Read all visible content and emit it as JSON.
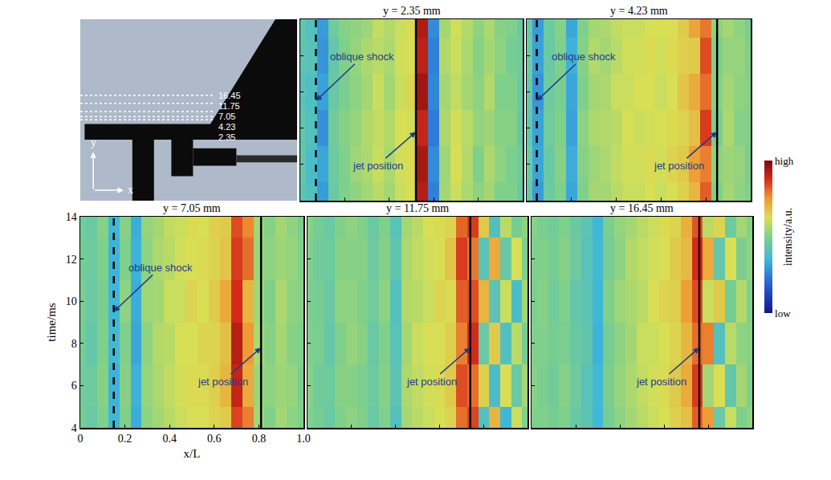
{
  "chart_data": {
    "type": "heatmap",
    "xlabel": "x/L",
    "ylabel": "time/ms",
    "xlim": [
      0,
      1
    ],
    "ylim": [
      4,
      14
    ],
    "xticks": [
      0,
      0.2,
      0.4,
      0.6,
      0.8,
      {
        "value": 1,
        "label": "1.0"
      }
    ],
    "yticks": [
      4,
      6,
      8,
      10,
      12,
      14
    ],
    "grid": false,
    "x": [
      0,
      0.05,
      0.1,
      0.15,
      0.2,
      0.25,
      0.3,
      0.35,
      0.4,
      0.45,
      0.5,
      0.55,
      0.6,
      0.65,
      0.7,
      0.75,
      0.8,
      0.85,
      0.9,
      0.95,
      1
    ],
    "time": [
      4,
      6,
      8,
      10,
      12,
      14
    ],
    "colorbar": {
      "range": [
        0,
        1
      ],
      "ticks": [
        {
          "value": 0,
          "label": "low"
        },
        {
          "value": 1,
          "label": "high"
        }
      ],
      "title": "intensity/a.u."
    },
    "photo": {
      "xlim": [
        0,
        1
      ],
      "ylim": [
        -44,
        60
      ],
      "probe_y": [
        16.45,
        11.75,
        7.05,
        4.23,
        2.35
      ],
      "axis_labels": {
        "x": "x",
        "y": "y"
      }
    },
    "panels": [
      {
        "title": "y = 2.35 mm",
        "tick_labels": false,
        "oblique_shock": {
          "label": "oblique shock",
          "x": 0.07
        },
        "jet": {
          "label": "jet position",
          "x": 0.52
        },
        "z": [
          [
            0.42,
            0.4,
            0.3,
            0.45,
            0.5,
            0.52,
            0.55,
            0.58,
            0.55,
            0.6,
            0.62,
            0.92,
            0.25,
            0.55,
            0.6,
            0.56,
            0.52,
            0.55,
            0.5,
            0.5,
            0.45
          ],
          [
            0.44,
            0.38,
            0.32,
            0.46,
            0.5,
            0.54,
            0.56,
            0.6,
            0.56,
            0.61,
            0.63,
            0.94,
            0.27,
            0.54,
            0.62,
            0.57,
            0.5,
            0.56,
            0.52,
            0.49,
            0.46
          ],
          [
            0.43,
            0.4,
            0.28,
            0.47,
            0.51,
            0.53,
            0.57,
            0.59,
            0.57,
            0.62,
            0.61,
            0.9,
            0.24,
            0.56,
            0.61,
            0.58,
            0.53,
            0.54,
            0.51,
            0.51,
            0.44
          ],
          [
            0.41,
            0.39,
            0.31,
            0.45,
            0.49,
            0.52,
            0.55,
            0.6,
            0.55,
            0.6,
            0.64,
            0.95,
            0.26,
            0.55,
            0.59,
            0.55,
            0.52,
            0.57,
            0.5,
            0.5,
            0.45
          ],
          [
            0.42,
            0.41,
            0.29,
            0.44,
            0.5,
            0.53,
            0.56,
            0.58,
            0.56,
            0.61,
            0.62,
            0.91,
            0.25,
            0.57,
            0.6,
            0.56,
            0.51,
            0.55,
            0.52,
            0.48,
            0.46
          ],
          [
            0.43,
            0.4,
            0.3,
            0.46,
            0.51,
            0.52,
            0.54,
            0.59,
            0.57,
            0.6,
            0.63,
            0.93,
            0.27,
            0.55,
            0.61,
            0.57,
            0.52,
            0.56,
            0.51,
            0.5,
            0.45
          ]
        ]
      },
      {
        "title": "y = 4.23 mm",
        "tick_labels": false,
        "oblique_shock": {
          "label": "oblique shock",
          "x": 0.045
        },
        "jet": {
          "label": "jet position",
          "x": 0.85
        },
        "z": [
          [
            0.45,
            0.3,
            0.46,
            0.5,
            0.32,
            0.5,
            0.55,
            0.55,
            0.58,
            0.6,
            0.6,
            0.62,
            0.6,
            0.62,
            0.65,
            0.7,
            0.82,
            0.5,
            0.55,
            0.52,
            0.5
          ],
          [
            0.46,
            0.32,
            0.45,
            0.51,
            0.33,
            0.51,
            0.54,
            0.56,
            0.59,
            0.61,
            0.61,
            0.63,
            0.61,
            0.64,
            0.66,
            0.74,
            0.78,
            0.52,
            0.54,
            0.53,
            0.49
          ],
          [
            0.44,
            0.31,
            0.47,
            0.5,
            0.31,
            0.52,
            0.56,
            0.57,
            0.58,
            0.62,
            0.6,
            0.61,
            0.62,
            0.63,
            0.64,
            0.68,
            0.86,
            0.49,
            0.56,
            0.51,
            0.5
          ],
          [
            0.45,
            0.29,
            0.46,
            0.49,
            0.32,
            0.5,
            0.55,
            0.56,
            0.6,
            0.6,
            0.62,
            0.62,
            0.6,
            0.62,
            0.67,
            0.72,
            0.8,
            0.51,
            0.55,
            0.52,
            0.51
          ],
          [
            0.46,
            0.31,
            0.45,
            0.5,
            0.34,
            0.51,
            0.57,
            0.55,
            0.58,
            0.61,
            0.61,
            0.63,
            0.61,
            0.63,
            0.65,
            0.66,
            0.84,
            0.5,
            0.53,
            0.53,
            0.5
          ],
          [
            0.45,
            0.3,
            0.46,
            0.51,
            0.32,
            0.5,
            0.55,
            0.56,
            0.59,
            0.6,
            0.6,
            0.62,
            0.62,
            0.62,
            0.66,
            0.73,
            0.79,
            0.52,
            0.55,
            0.52,
            0.49
          ]
        ]
      },
      {
        "title": "y = 7.05 mm",
        "oblique_shock": {
          "label": "oblique shock",
          "x": 0.15
        },
        "jet": {
          "label": "jet position",
          "x": 0.81
        },
        "z": [
          [
            0.48,
            0.45,
            0.5,
            0.35,
            0.5,
            0.33,
            0.52,
            0.55,
            0.58,
            0.6,
            0.62,
            0.62,
            0.64,
            0.66,
            0.85,
            0.78,
            0.55,
            0.5,
            0.55,
            0.52,
            0.5
          ],
          [
            0.47,
            0.46,
            0.51,
            0.34,
            0.51,
            0.34,
            0.53,
            0.56,
            0.59,
            0.61,
            0.63,
            0.63,
            0.65,
            0.7,
            0.9,
            0.72,
            0.54,
            0.52,
            0.54,
            0.53,
            0.49
          ],
          [
            0.48,
            0.44,
            0.5,
            0.36,
            0.5,
            0.32,
            0.52,
            0.57,
            0.58,
            0.62,
            0.62,
            0.64,
            0.64,
            0.68,
            0.92,
            0.75,
            0.56,
            0.51,
            0.55,
            0.51,
            0.5
          ],
          [
            0.49,
            0.45,
            0.49,
            0.35,
            0.52,
            0.33,
            0.54,
            0.55,
            0.6,
            0.6,
            0.64,
            0.62,
            0.66,
            0.72,
            0.88,
            0.7,
            0.55,
            0.5,
            0.56,
            0.52,
            0.51
          ],
          [
            0.48,
            0.46,
            0.5,
            0.34,
            0.5,
            0.34,
            0.52,
            0.56,
            0.58,
            0.61,
            0.62,
            0.63,
            0.64,
            0.67,
            0.86,
            0.8,
            0.54,
            0.52,
            0.54,
            0.53,
            0.5
          ],
          [
            0.47,
            0.45,
            0.51,
            0.35,
            0.51,
            0.33,
            0.53,
            0.55,
            0.59,
            0.6,
            0.63,
            0.62,
            0.65,
            0.66,
            0.84,
            0.77,
            0.55,
            0.51,
            0.55,
            0.52,
            0.49
          ]
        ]
      },
      {
        "title": "y = 11.75 mm",
        "tick_labels": false,
        "jet": {
          "label": "jet position",
          "x": 0.74
        },
        "z": [
          [
            0.5,
            0.48,
            0.45,
            0.5,
            0.52,
            0.5,
            0.45,
            0.5,
            0.4,
            0.55,
            0.58,
            0.6,
            0.62,
            0.64,
            0.8,
            0.85,
            0.4,
            0.7,
            0.35,
            0.6,
            0.5
          ],
          [
            0.51,
            0.47,
            0.46,
            0.51,
            0.51,
            0.49,
            0.46,
            0.51,
            0.42,
            0.56,
            0.59,
            0.61,
            0.63,
            0.66,
            0.84,
            0.8,
            0.65,
            0.38,
            0.62,
            0.45,
            0.55
          ],
          [
            0.5,
            0.49,
            0.44,
            0.5,
            0.53,
            0.51,
            0.45,
            0.5,
            0.41,
            0.55,
            0.6,
            0.62,
            0.62,
            0.65,
            0.78,
            0.88,
            0.45,
            0.66,
            0.4,
            0.58,
            0.48
          ],
          [
            0.49,
            0.48,
            0.45,
            0.52,
            0.52,
            0.5,
            0.47,
            0.52,
            0.4,
            0.57,
            0.58,
            0.6,
            0.64,
            0.63,
            0.82,
            0.84,
            0.7,
            0.42,
            0.6,
            0.38,
            0.55
          ],
          [
            0.5,
            0.47,
            0.46,
            0.51,
            0.51,
            0.51,
            0.46,
            0.51,
            0.43,
            0.56,
            0.59,
            0.61,
            0.62,
            0.67,
            0.86,
            0.79,
            0.42,
            0.72,
            0.45,
            0.62,
            0.5
          ],
          [
            0.51,
            0.48,
            0.45,
            0.5,
            0.52,
            0.5,
            0.45,
            0.5,
            0.41,
            0.55,
            0.58,
            0.62,
            0.63,
            0.64,
            0.81,
            0.86,
            0.66,
            0.4,
            0.58,
            0.48,
            0.52
          ]
        ]
      },
      {
        "title": "y = 16.45 mm",
        "tick_labels": false,
        "jet": {
          "label": "jet position",
          "x": 0.76
        },
        "z": [
          [
            0.5,
            0.5,
            0.48,
            0.5,
            0.45,
            0.42,
            0.35,
            0.48,
            0.52,
            0.55,
            0.58,
            0.6,
            0.62,
            0.65,
            0.68,
            0.82,
            0.75,
            0.45,
            0.6,
            0.5,
            0.52
          ],
          [
            0.51,
            0.49,
            0.47,
            0.51,
            0.46,
            0.41,
            0.36,
            0.49,
            0.53,
            0.56,
            0.59,
            0.61,
            0.63,
            0.66,
            0.72,
            0.86,
            0.55,
            0.62,
            0.44,
            0.55,
            0.5
          ],
          [
            0.5,
            0.5,
            0.48,
            0.49,
            0.45,
            0.43,
            0.34,
            0.48,
            0.52,
            0.55,
            0.6,
            0.6,
            0.62,
            0.64,
            0.7,
            0.8,
            0.78,
            0.4,
            0.58,
            0.52,
            0.51
          ],
          [
            0.49,
            0.51,
            0.47,
            0.5,
            0.44,
            0.42,
            0.35,
            0.5,
            0.54,
            0.56,
            0.58,
            0.62,
            0.64,
            0.65,
            0.74,
            0.84,
            0.6,
            0.66,
            0.48,
            0.57,
            0.5
          ],
          [
            0.5,
            0.5,
            0.48,
            0.51,
            0.46,
            0.41,
            0.36,
            0.48,
            0.52,
            0.57,
            0.59,
            0.61,
            0.62,
            0.66,
            0.69,
            0.88,
            0.72,
            0.44,
            0.62,
            0.49,
            0.52
          ],
          [
            0.51,
            0.49,
            0.47,
            0.5,
            0.45,
            0.42,
            0.35,
            0.49,
            0.53,
            0.55,
            0.58,
            0.6,
            0.63,
            0.64,
            0.71,
            0.83,
            0.58,
            0.64,
            0.46,
            0.55,
            0.51
          ]
        ]
      }
    ]
  }
}
